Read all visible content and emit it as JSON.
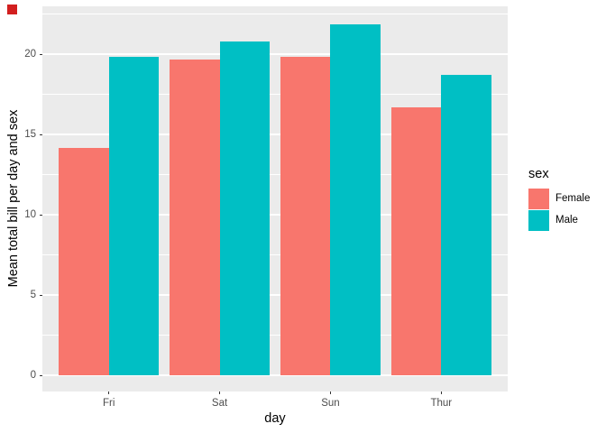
{
  "chart_data": {
    "type": "bar",
    "grouping": "dodged",
    "title": "",
    "xlabel": "day",
    "ylabel": "Mean total bill per day and sex",
    "categories": [
      "Fri",
      "Sat",
      "Sun",
      "Thur"
    ],
    "series": [
      {
        "name": "Female",
        "color": "#F8766D",
        "values": [
          14.15,
          19.68,
          19.87,
          16.72
        ]
      },
      {
        "name": "Male",
        "color": "#00BFC4",
        "values": [
          19.86,
          20.8,
          21.89,
          18.71
        ]
      }
    ],
    "ylim": [
      0,
      23
    ],
    "y_ticks": [
      0,
      5,
      10,
      15,
      20
    ],
    "y_minor_ticks": [
      2.5,
      7.5,
      12.5,
      17.5,
      22.5
    ],
    "grid": "white major and minor horizontal gridlines on grey panel",
    "legend": {
      "title": "sex",
      "position": "right"
    }
  },
  "theme": {
    "panel_bg": "#EBEBEB",
    "grid_color": "#FFFFFF",
    "axis_text_color": "#4D4D4D",
    "axis_title_color": "#000000",
    "tick_mark_color": "#333333",
    "background": "#FFFFFF",
    "corner_marker_color": "#d21f1f"
  }
}
